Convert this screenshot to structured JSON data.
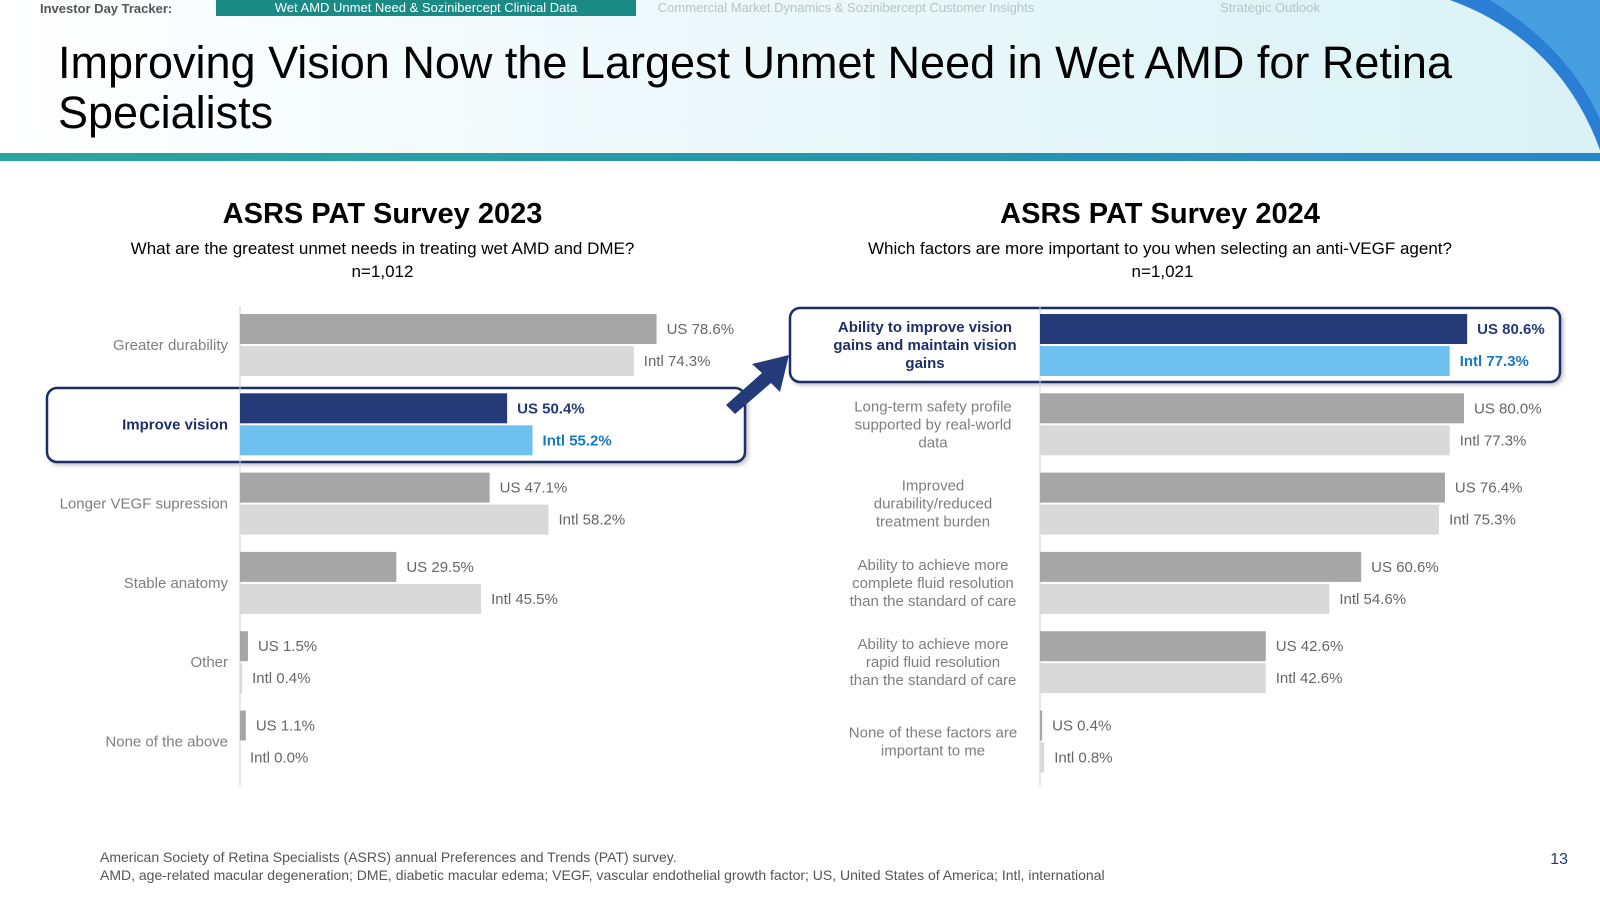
{
  "nav": {
    "label": "Investor Day Tracker:",
    "tabs": [
      {
        "label": "Wet AMD Unmet Need & Sozinibercept Clinical Data",
        "active": true
      },
      {
        "label": "Commercial Market Dynamics & Sozinibercept Customer Insights",
        "active": false
      },
      {
        "label": "Strategic Outlook",
        "active": false
      }
    ]
  },
  "title": "Improving Vision Now the Largest Unmet Need in Wet AMD for Retina Specialists",
  "colors": {
    "us_gray": "#a6a6a6",
    "intl_gray": "#d9d9d9",
    "us_highlight": "#253a78",
    "intl_highlight": "#6ec0f0",
    "highlight_border": "#1e2f66",
    "teal": "#1a8a84"
  },
  "chart_data": [
    {
      "type": "bar",
      "orientation": "horizontal",
      "title": "ASRS PAT Survey 2023",
      "subtitle": "What are the greatest unmet needs in treating wet AMD and DME?",
      "n": "n=1,012",
      "xlim": [
        0,
        80
      ],
      "highlight_index": 1,
      "categories": [
        "Greater durability",
        "Improve vision",
        "Longer VEGF supression",
        "Stable anatomy",
        "Other",
        "None of the above"
      ],
      "series": [
        {
          "name": "US",
          "values": [
            78.6,
            50.4,
            47.1,
            29.5,
            1.5,
            1.1
          ],
          "labels": [
            "US 78.6%",
            "US 50.4%",
            "US 47.1%",
            "US 29.5%",
            "US 1.5%",
            "US 1.1%"
          ]
        },
        {
          "name": "Intl",
          "values": [
            74.3,
            55.2,
            58.2,
            45.5,
            0.4,
            0.0
          ],
          "labels": [
            "Intl 74.3%",
            "Intl 55.2%",
            "Intl 58.2%",
            "Intl 45.5%",
            "Intl 0.4%",
            "Intl 0.0%"
          ]
        }
      ]
    },
    {
      "type": "bar",
      "orientation": "horizontal",
      "title": "ASRS PAT Survey 2024",
      "subtitle": "Which factors are more important to you when selecting an anti-VEGF agent?",
      "n": "n=1,021",
      "xlim": [
        0,
        80
      ],
      "highlight_index": 0,
      "categories": [
        "Ability to improve vision gains and maintain vision gains",
        "Long-term safety profile supported by real-world data",
        "Improved durability/reduced treatment burden",
        "Ability to achieve more complete fluid resolution than the standard of care",
        "Ability to achieve more rapid fluid resolution than the standard of care",
        "None of these factors are important to me"
      ],
      "series": [
        {
          "name": "US",
          "values": [
            80.6,
            80.0,
            76.4,
            60.6,
            42.6,
            0.4
          ],
          "labels": [
            "US 80.6%",
            "US 80.0%",
            "US 76.4%",
            "US 60.6%",
            "US 42.6%",
            "US 0.4%"
          ]
        },
        {
          "name": "Intl",
          "values": [
            77.3,
            77.3,
            75.3,
            54.6,
            42.6,
            0.8
          ],
          "labels": [
            "Intl 77.3%",
            "Intl 77.3%",
            "Intl 75.3%",
            "Intl 54.6%",
            "Intl 42.6%",
            "Intl 0.8%"
          ]
        }
      ]
    }
  ],
  "footer": {
    "line1": "American Society of Retina Specialists (ASRS) annual Preferences and Trends (PAT) survey.",
    "line2": "AMD, age-related macular degeneration; DME, diabetic macular edema; VEGF, vascular endothelial growth factor; US, United States of America; Intl, international"
  },
  "page_number": "13"
}
